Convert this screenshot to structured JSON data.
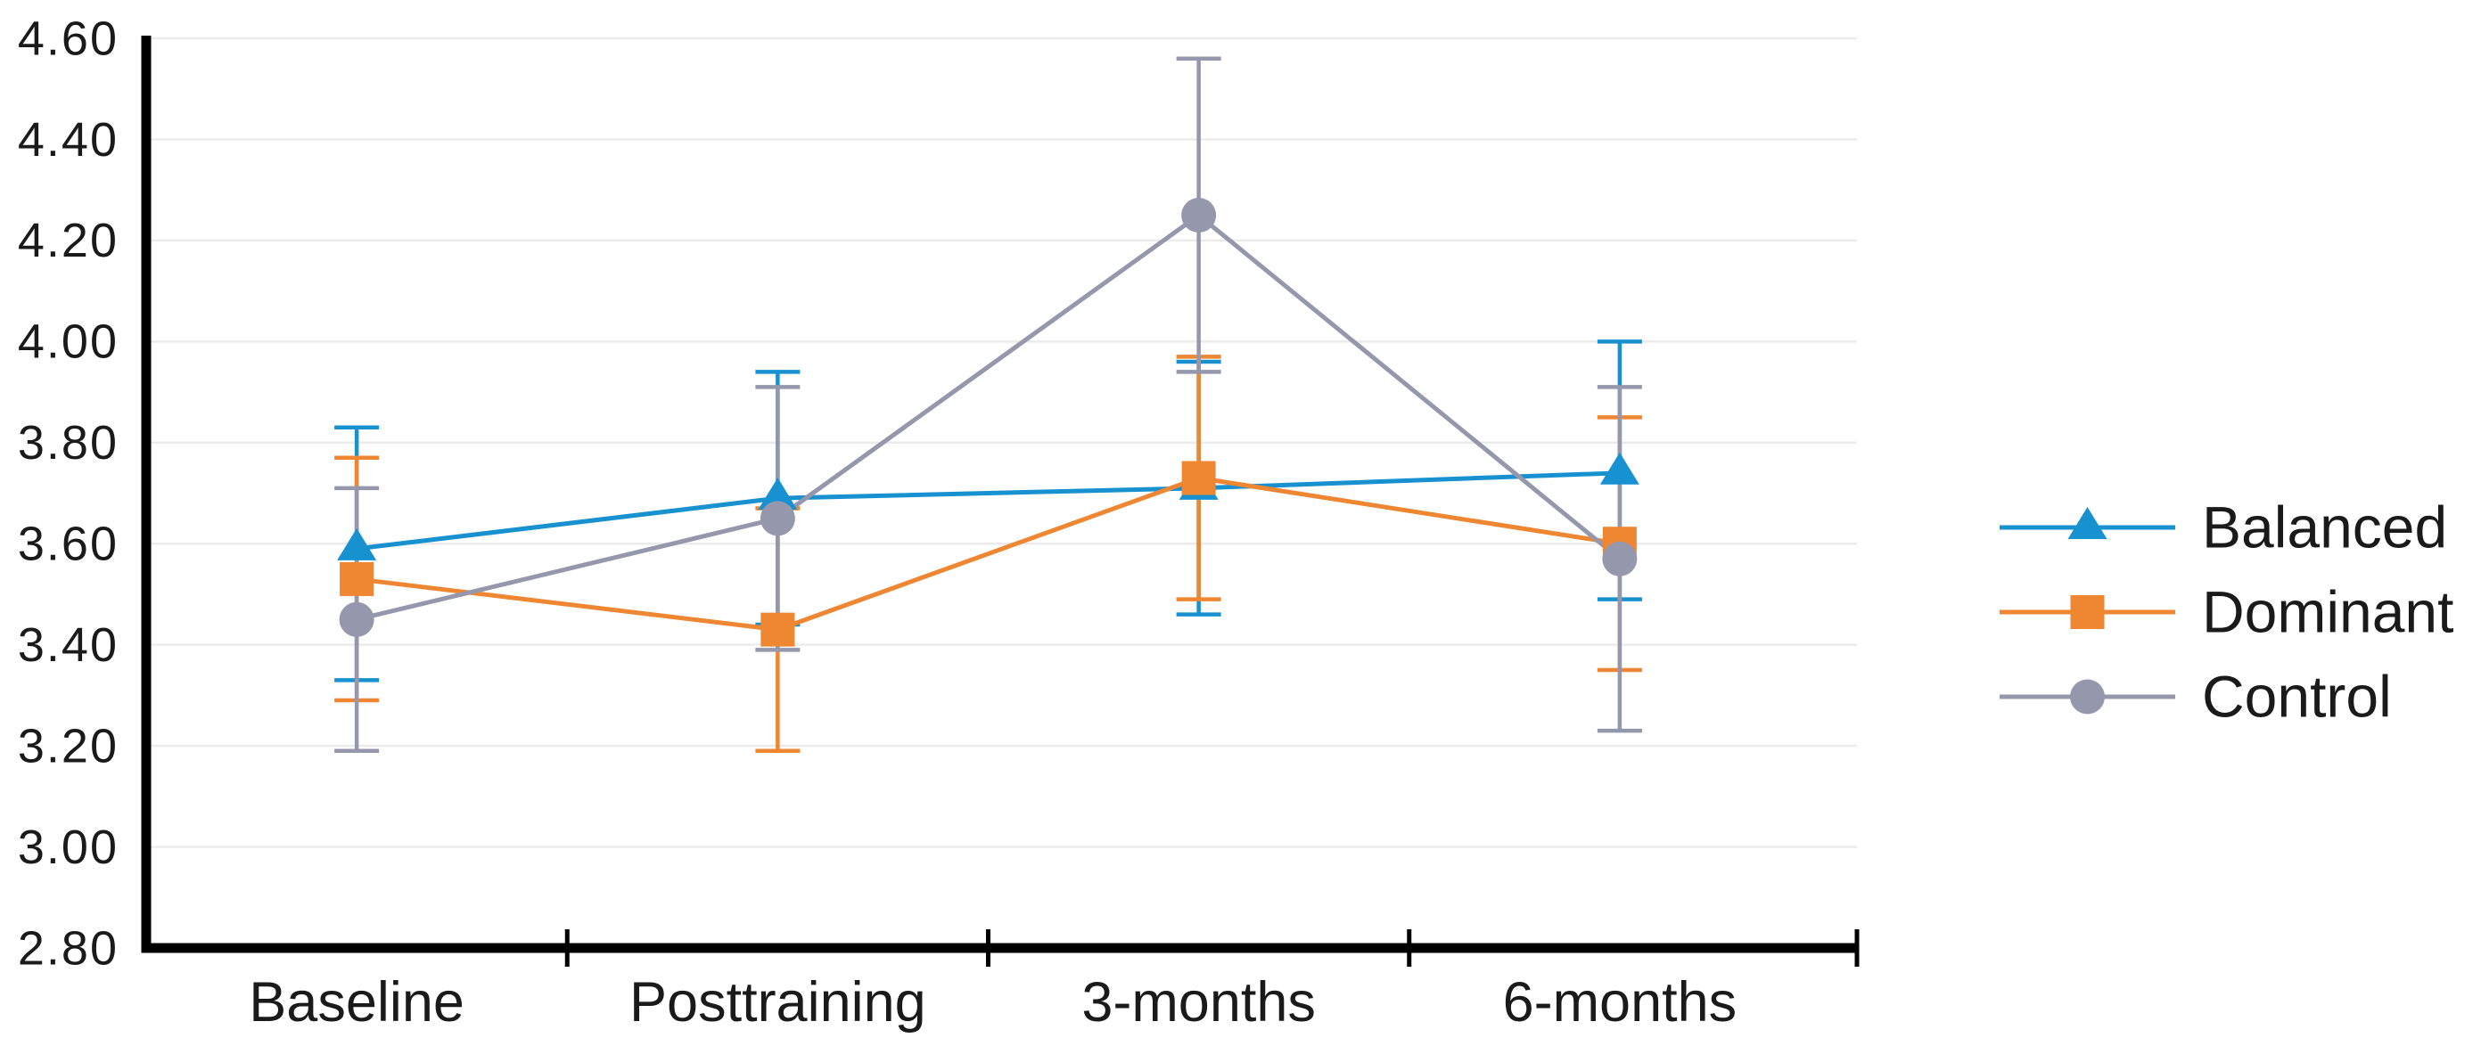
{
  "chart_data": {
    "type": "line",
    "title": "",
    "xlabel": "",
    "ylabel": "",
    "categories": [
      "Baseline",
      "Posttraining",
      "3-months",
      "6-months"
    ],
    "y_tick_labels": [
      "2.80",
      "3.00",
      "3.20",
      "3.40",
      "3.60",
      "3.80",
      "4.00",
      "4.20",
      "4.40",
      "4.60"
    ],
    "ylim": [
      2.8,
      4.6
    ],
    "grid": "horizontal",
    "error_bars": true,
    "legend_position": "right",
    "series": [
      {
        "name": "Balanced",
        "marker": "triangle",
        "color": "#1791CF",
        "values": [
          3.59,
          3.69,
          3.71,
          3.74
        ],
        "err_low": [
          3.33,
          3.44,
          3.46,
          3.49
        ],
        "err_high": [
          3.83,
          3.94,
          3.96,
          4.0
        ]
      },
      {
        "name": "Dominant",
        "marker": "square",
        "color": "#EE8632",
        "values": [
          3.53,
          3.43,
          3.73,
          3.6
        ],
        "err_low": [
          3.29,
          3.19,
          3.49,
          3.35
        ],
        "err_high": [
          3.77,
          3.67,
          3.97,
          3.85
        ]
      },
      {
        "name": "Control",
        "marker": "circle",
        "color": "#9598AD",
        "values": [
          3.45,
          3.65,
          4.25,
          3.57
        ],
        "err_low": [
          3.19,
          3.39,
          3.94,
          3.23
        ],
        "err_high": [
          3.71,
          3.91,
          4.56,
          3.91
        ]
      }
    ],
    "colors": {
      "grid": "#EBEBEB",
      "axis": "#000000",
      "text": "#1A1A1A"
    }
  }
}
